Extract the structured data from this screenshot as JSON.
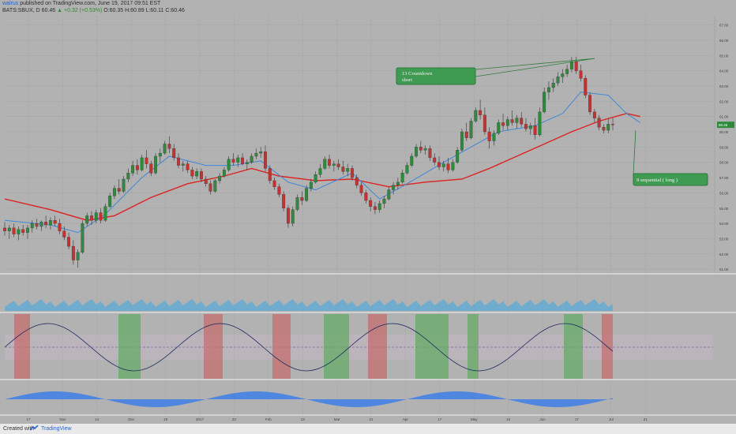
{
  "header": {
    "author": "walrus",
    "published": "published on TradingView.com, June 19, 2017 09:51 EST",
    "symbol": "BATS:SBUX, D",
    "price": "60.46",
    "change": "▲ +0.32 (+0.53%)",
    "ohlc": "O:60.35 H:60.89 L:60.11 C:60.46"
  },
  "footer": {
    "created_with": "Created with",
    "brand": "TradingView"
  },
  "colors": {
    "background": "#b2b2b2",
    "bull": "#2e8b3c",
    "bear": "#c23434",
    "ma_fast": "#3f88d8",
    "ma_slow": "#dd2222",
    "annotation_box": "#3f9a52",
    "annotation_text": "#3aa847",
    "cyan": "#36c6cf",
    "volume": "#5aa9d6",
    "histogram": "#3d7ee8"
  },
  "chart_data": {
    "type": "candlestick",
    "price_axis": {
      "min": 50.8,
      "max": 67.6,
      "ticks": [
        "51.00",
        "52.00",
        "53.00",
        "54.00",
        "55.00",
        "56.00",
        "57.00",
        "58.00",
        "59.00",
        "60.00",
        "61.00",
        "62.00",
        "63.00",
        "64.00",
        "65.00",
        "66.00",
        "67.00"
      ],
      "last_label": "60.46"
    },
    "x_ticks": [
      "17",
      "Nov",
      "14",
      "Dec",
      "19",
      "2017",
      "23",
      "Feb",
      "13",
      "Mar",
      "21",
      "Apr",
      "17",
      "May",
      "15",
      "Jun",
      "17",
      "Jul",
      "21"
    ],
    "ohlc": [
      [
        53.7,
        54.1,
        53.2,
        53.5
      ],
      [
        53.5,
        53.9,
        53.0,
        53.7
      ],
      [
        53.7,
        54.0,
        53.1,
        53.3
      ],
      [
        53.3,
        53.8,
        52.9,
        53.6
      ],
      [
        53.6,
        53.9,
        53.2,
        53.4
      ],
      [
        53.4,
        53.9,
        53.0,
        53.7
      ],
      [
        53.7,
        54.2,
        53.4,
        54.0
      ],
      [
        54.0,
        54.3,
        53.6,
        53.8
      ],
      [
        53.8,
        54.2,
        53.5,
        54.1
      ],
      [
        54.1,
        54.5,
        53.7,
        53.9
      ],
      [
        53.9,
        54.4,
        53.6,
        54.2
      ],
      [
        54.2,
        54.5,
        53.8,
        54.0
      ],
      [
        54.0,
        54.3,
        53.3,
        53.5
      ],
      [
        53.5,
        53.8,
        52.9,
        53.1
      ],
      [
        53.1,
        53.4,
        52.3,
        52.5
      ],
      [
        52.5,
        52.9,
        51.3,
        51.6
      ],
      [
        51.6,
        52.3,
        51.1,
        52.1
      ],
      [
        52.1,
        54.2,
        52.0,
        54.0
      ],
      [
        54.0,
        54.7,
        53.8,
        54.5
      ],
      [
        54.5,
        54.8,
        53.9,
        54.2
      ],
      [
        54.2,
        54.9,
        54.0,
        54.7
      ],
      [
        54.7,
        55.0,
        54.0,
        54.2
      ],
      [
        54.2,
        55.3,
        54.1,
        55.1
      ],
      [
        55.1,
        56.0,
        55.0,
        55.8
      ],
      [
        55.8,
        56.5,
        55.6,
        56.3
      ],
      [
        56.3,
        56.9,
        55.9,
        56.1
      ],
      [
        56.1,
        57.1,
        56.0,
        56.9
      ],
      [
        56.9,
        57.6,
        56.7,
        57.3
      ],
      [
        57.3,
        58.1,
        57.1,
        57.8
      ],
      [
        57.8,
        58.2,
        57.2,
        57.5
      ],
      [
        57.5,
        58.5,
        57.4,
        58.3
      ],
      [
        58.3,
        58.8,
        57.6,
        57.9
      ],
      [
        57.9,
        58.1,
        57.1,
        57.3
      ],
      [
        57.3,
        58.6,
        57.2,
        58.4
      ],
      [
        58.4,
        58.9,
        58.0,
        58.6
      ],
      [
        58.6,
        59.4,
        58.5,
        59.2
      ],
      [
        59.2,
        59.7,
        58.6,
        58.9
      ],
      [
        58.9,
        59.2,
        58.1,
        58.3
      ],
      [
        58.3,
        58.6,
        57.6,
        57.8
      ],
      [
        57.8,
        58.1,
        57.4,
        57.9
      ],
      [
        57.9,
        58.1,
        57.3,
        57.5
      ],
      [
        57.5,
        57.7,
        56.9,
        57.1
      ],
      [
        57.1,
        57.6,
        56.9,
        57.4
      ],
      [
        57.4,
        57.6,
        56.7,
        56.9
      ],
      [
        56.9,
        57.1,
        56.4,
        56.6
      ],
      [
        56.6,
        56.8,
        55.9,
        56.1
      ],
      [
        56.1,
        56.9,
        56.0,
        56.8
      ],
      [
        56.8,
        57.3,
        56.6,
        57.1
      ],
      [
        57.1,
        57.7,
        57.0,
        57.5
      ],
      [
        57.5,
        58.4,
        57.4,
        58.2
      ],
      [
        58.2,
        58.6,
        57.8,
        58.0
      ],
      [
        58.0,
        58.5,
        57.7,
        58.3
      ],
      [
        58.3,
        58.6,
        57.8,
        57.9
      ],
      [
        57.9,
        58.2,
        57.5,
        58.0
      ],
      [
        58.0,
        58.6,
        57.9,
        58.4
      ],
      [
        58.4,
        58.9,
        58.2,
        58.6
      ],
      [
        58.6,
        59.0,
        58.3,
        58.7
      ],
      [
        58.7,
        59.1,
        57.4,
        57.6
      ],
      [
        57.6,
        57.8,
        56.6,
        56.8
      ],
      [
        56.8,
        57.0,
        56.2,
        56.4
      ],
      [
        56.4,
        56.6,
        55.7,
        55.9
      ],
      [
        55.9,
        56.1,
        54.8,
        55.0
      ],
      [
        55.0,
        55.2,
        53.7,
        54.0
      ],
      [
        54.0,
        55.1,
        53.8,
        54.9
      ],
      [
        54.9,
        55.9,
        54.8,
        55.7
      ],
      [
        55.7,
        56.1,
        55.2,
        55.5
      ],
      [
        55.5,
        56.5,
        55.4,
        56.3
      ],
      [
        56.3,
        56.9,
        56.1,
        56.7
      ],
      [
        56.7,
        57.4,
        56.6,
        57.2
      ],
      [
        57.2,
        57.9,
        57.0,
        57.6
      ],
      [
        57.6,
        58.4,
        57.5,
        58.2
      ],
      [
        58.2,
        58.5,
        57.6,
        57.8
      ],
      [
        57.8,
        58.1,
        57.4,
        57.9
      ],
      [
        57.9,
        58.2,
        57.5,
        57.7
      ],
      [
        57.7,
        58.1,
        57.2,
        57.4
      ],
      [
        57.4,
        57.9,
        57.1,
        57.6
      ],
      [
        57.6,
        57.8,
        56.8,
        57.0
      ],
      [
        57.0,
        57.2,
        56.3,
        56.5
      ],
      [
        56.5,
        56.7,
        55.8,
        56.0
      ],
      [
        56.0,
        56.2,
        55.3,
        55.5
      ],
      [
        55.5,
        55.7,
        54.8,
        55.1
      ],
      [
        55.1,
        55.4,
        54.6,
        54.9
      ],
      [
        54.9,
        55.5,
        54.7,
        55.3
      ],
      [
        55.3,
        55.8,
        55.0,
        55.6
      ],
      [
        55.6,
        56.4,
        55.5,
        56.2
      ],
      [
        56.2,
        56.7,
        55.9,
        56.5
      ],
      [
        56.5,
        57.0,
        56.2,
        56.7
      ],
      [
        56.7,
        57.5,
        56.6,
        57.3
      ],
      [
        57.3,
        58.0,
        57.2,
        57.8
      ],
      [
        57.8,
        58.6,
        57.7,
        58.4
      ],
      [
        58.4,
        59.2,
        58.3,
        59.0
      ],
      [
        59.0,
        59.4,
        58.6,
        58.8
      ],
      [
        58.8,
        59.1,
        58.5,
        58.9
      ],
      [
        58.9,
        59.1,
        58.1,
        58.3
      ],
      [
        58.3,
        58.6,
        57.8,
        58.0
      ],
      [
        58.0,
        58.4,
        57.5,
        57.7
      ],
      [
        57.7,
        58.1,
        57.4,
        57.9
      ],
      [
        57.9,
        58.3,
        57.3,
        57.5
      ],
      [
        57.5,
        58.2,
        57.4,
        58.0
      ],
      [
        58.0,
        59.0,
        57.9,
        58.8
      ],
      [
        58.8,
        60.2,
        58.7,
        60.0
      ],
      [
        60.0,
        60.6,
        59.4,
        59.6
      ],
      [
        59.6,
        60.9,
        59.5,
        60.7
      ],
      [
        60.7,
        61.6,
        60.6,
        61.4
      ],
      [
        61.4,
        62.1,
        60.8,
        61.1
      ],
      [
        61.1,
        61.6,
        59.8,
        60.0
      ],
      [
        60.0,
        60.3,
        58.9,
        59.4
      ],
      [
        59.4,
        60.1,
        59.1,
        59.9
      ],
      [
        59.9,
        60.8,
        59.8,
        60.6
      ],
      [
        60.6,
        61.2,
        60.1,
        60.4
      ],
      [
        60.4,
        61.0,
        60.1,
        60.8
      ],
      [
        60.8,
        61.4,
        60.4,
        60.6
      ],
      [
        60.6,
        61.1,
        60.2,
        60.9
      ],
      [
        60.9,
        61.3,
        60.3,
        60.5
      ],
      [
        60.5,
        60.9,
        60.0,
        60.2
      ],
      [
        60.2,
        60.6,
        59.8,
        60.4
      ],
      [
        60.4,
        60.9,
        59.5,
        59.8
      ],
      [
        59.8,
        61.6,
        59.7,
        61.3
      ],
      [
        61.3,
        62.9,
        61.2,
        62.6
      ],
      [
        62.6,
        63.3,
        62.1,
        62.9
      ],
      [
        62.9,
        63.5,
        62.6,
        63.2
      ],
      [
        63.2,
        63.9,
        63.0,
        63.6
      ],
      [
        63.6,
        64.1,
        63.2,
        63.8
      ],
      [
        63.8,
        64.4,
        63.6,
        64.1
      ],
      [
        64.1,
        64.9,
        63.9,
        64.6
      ],
      [
        64.6,
        64.9,
        63.8,
        64.0
      ],
      [
        64.0,
        64.4,
        63.3,
        63.5
      ],
      [
        63.5,
        63.7,
        62.2,
        62.4
      ],
      [
        62.4,
        62.6,
        61.1,
        61.3
      ],
      [
        61.3,
        61.5,
        60.6,
        60.9
      ],
      [
        60.9,
        61.1,
        60.1,
        60.3
      ],
      [
        60.3,
        60.5,
        59.9,
        60.1
      ],
      [
        60.1,
        60.9,
        59.9,
        60.5
      ],
      [
        60.5,
        60.9,
        60.1,
        60.46
      ]
    ],
    "ma_fast": [
      [
        0,
        54.2
      ],
      [
        10,
        53.9
      ],
      [
        16,
        53.4
      ],
      [
        22,
        54.6
      ],
      [
        30,
        57.0
      ],
      [
        36,
        58.4
      ],
      [
        44,
        57.8
      ],
      [
        50,
        57.8
      ],
      [
        56,
        58.1
      ],
      [
        62,
        56.7
      ],
      [
        68,
        56.2
      ],
      [
        76,
        57.3
      ],
      [
        82,
        55.6
      ],
      [
        88,
        56.6
      ],
      [
        96,
        58.0
      ],
      [
        102,
        59.0
      ],
      [
        108,
        60.0
      ],
      [
        116,
        60.4
      ],
      [
        122,
        61.2
      ],
      [
        126,
        62.6
      ],
      [
        132,
        62.4
      ],
      [
        136,
        61.2
      ],
      [
        139,
        60.6
      ]
    ],
    "ma_slow": [
      [
        0,
        55.6
      ],
      [
        10,
        54.9
      ],
      [
        18,
        54.2
      ],
      [
        24,
        54.5
      ],
      [
        32,
        55.7
      ],
      [
        40,
        56.6
      ],
      [
        48,
        57.1
      ],
      [
        54,
        57.6
      ],
      [
        60,
        57.1
      ],
      [
        68,
        56.8
      ],
      [
        76,
        56.9
      ],
      [
        84,
        56.4
      ],
      [
        92,
        56.7
      ],
      [
        100,
        56.9
      ],
      [
        106,
        57.6
      ],
      [
        112,
        58.4
      ],
      [
        118,
        59.2
      ],
      [
        124,
        60.0
      ],
      [
        130,
        60.7
      ],
      [
        136,
        61.2
      ],
      [
        139,
        61.0
      ]
    ],
    "annotations": [
      {
        "text": "13 Countdown",
        "text2": "short",
        "bar": 129,
        "price": 64.8
      },
      {
        "text": "9 sequential  ( long )",
        "bar": 138,
        "price": 60.1
      }
    ]
  }
}
